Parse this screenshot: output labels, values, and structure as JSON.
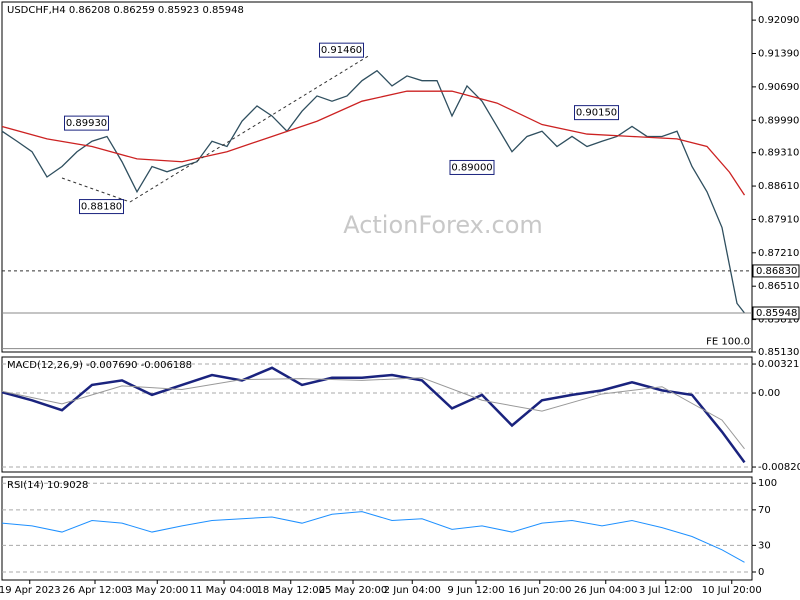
{
  "chart_data": [
    {
      "type": "line",
      "title": "USDCHF,H4 0.86208 0.86259 0.85923 0.85948",
      "watermark": "ActionForex.com",
      "xlim": [
        0,
        100
      ],
      "ylim": [
        0.8513,
        0.9247
      ],
      "yticks": [
        {
          "value": 0.9209,
          "label": "0.92090"
        },
        {
          "value": 0.9139,
          "label": "0.91390"
        },
        {
          "value": 0.9069,
          "label": "0.90690"
        },
        {
          "value": 0.8999,
          "label": "0.89990"
        },
        {
          "value": 0.8931,
          "label": "0.89310"
        },
        {
          "value": 0.8861,
          "label": "0.88610"
        },
        {
          "value": 0.8791,
          "label": "0.87910"
        },
        {
          "value": 0.8721,
          "label": "0.87210"
        },
        {
          "value": 0.8651,
          "label": "0.86510"
        },
        {
          "value": 0.8581,
          "label": "0.85810"
        },
        {
          "value": 0.8513,
          "label": "0.85130"
        }
      ],
      "series": [
        {
          "name": "USDCHF",
          "color": "#2f4f5f",
          "x": [
            0,
            2,
            4,
            6,
            8,
            10,
            12,
            14,
            16,
            18,
            20,
            22,
            24,
            26,
            28,
            30,
            32,
            34,
            36,
            38,
            40,
            42,
            44,
            46,
            48,
            50,
            52,
            54,
            56,
            58,
            60,
            62,
            64,
            66,
            68,
            70,
            72,
            74,
            76,
            78,
            80,
            82,
            84,
            86,
            88,
            90,
            92,
            94,
            96,
            98,
            99
          ],
          "values": [
            0.8976,
            0.8955,
            0.8933,
            0.888,
            0.8902,
            0.8933,
            0.8955,
            0.8965,
            0.8912,
            0.8849,
            0.8902,
            0.8891,
            0.8902,
            0.8912,
            0.8955,
            0.8944,
            0.8997,
            0.9029,
            0.9008,
            0.8976,
            0.9018,
            0.905,
            0.9039,
            0.905,
            0.9082,
            0.9103,
            0.9071,
            0.9092,
            0.9082,
            0.9082,
            0.9008,
            0.9071,
            0.9039,
            0.8986,
            0.8933,
            0.8965,
            0.8976,
            0.8944,
            0.8965,
            0.8944,
            0.8955,
            0.8965,
            0.8986,
            0.8965,
            0.8965,
            0.8976,
            0.8902,
            0.8849,
            0.8774,
            0.8615,
            0.85948
          ]
        },
        {
          "name": "MA",
          "color": "#cc2222",
          "x": [
            0,
            6,
            12,
            18,
            24,
            30,
            36,
            42,
            48,
            54,
            60,
            66,
            72,
            78,
            84,
            90,
            94,
            97,
            99
          ],
          "values": [
            0.8986,
            0.896,
            0.8944,
            0.8918,
            0.8912,
            0.8933,
            0.8965,
            0.8997,
            0.9039,
            0.906,
            0.906,
            0.9035,
            0.899,
            0.897,
            0.8965,
            0.896,
            0.8944,
            0.889,
            0.8842
          ]
        }
      ],
      "levels": [
        {
          "value": 0.8683,
          "label": "0.86830",
          "style": "dashed",
          "label_position": "axis"
        },
        {
          "value": 0.85948,
          "label": "0.85948",
          "style": "solid",
          "label_position": "axis"
        },
        {
          "value": 0.852,
          "label": "FE 100.0",
          "style": "solid",
          "label_position": "inside"
        }
      ],
      "annotations": [
        {
          "x": 49,
          "value": 0.9146,
          "label": "0.91460"
        },
        {
          "x": 15,
          "value": 0.8993,
          "label": "0.89930"
        },
        {
          "x": 17,
          "value": 0.8818,
          "label": "0.88180"
        },
        {
          "x": 66.4,
          "value": 0.89,
          "label": "0.89000"
        },
        {
          "x": 83,
          "value": 0.9015,
          "label": "0.90150"
        }
      ]
    },
    {
      "type": "line",
      "title": "MACD(12,26,9) -0.007690 -0.006188",
      "xlim": [
        0,
        100
      ],
      "ylim": [
        -0.00876,
        0.004
      ],
      "yticks": [
        0.003219,
        {
          "value": 0,
          "label": "0.00"
        },
        -0.008209
      ],
      "grid": true,
      "series": [
        {
          "name": "MACD",
          "color": "#1a237e",
          "width": 2.5,
          "x": [
            0,
            4,
            8,
            12,
            16,
            20,
            24,
            28,
            32,
            36,
            40,
            44,
            48,
            52,
            56,
            60,
            64,
            68,
            72,
            76,
            80,
            84,
            88,
            92,
            96,
            99
          ],
          "values": [
            0.0001,
            -0.0008,
            -0.0019,
            0.0009,
            0.0014,
            -0.0002,
            0.0009,
            0.002,
            0.0014,
            0.0028,
            0.0009,
            0.0017,
            0.0017,
            0.002,
            0.0014,
            -0.0017,
            -0.0002,
            -0.0036,
            -0.0008,
            -0.0002,
            0.0003,
            0.0012,
            0.0003,
            -0.0002,
            -0.0043,
            -0.00769
          ]
        },
        {
          "name": "Signal",
          "color": "#999999",
          "width": 1,
          "x": [
            0,
            8,
            16,
            24,
            32,
            40,
            48,
            56,
            64,
            72,
            80,
            88,
            96,
            99
          ],
          "values": [
            0.0002,
            -0.0012,
            0.0008,
            0.0004,
            0.0015,
            0.0016,
            0.0014,
            0.0017,
            -0.0008,
            -0.002,
            -0.0001,
            0.0007,
            -0.003,
            -0.006188
          ]
        }
      ]
    },
    {
      "type": "line",
      "title": "RSI(14) 10.9028",
      "xlim": [
        0,
        100
      ],
      "ylim": [
        -9,
        107
      ],
      "yticks": [
        0,
        30,
        70,
        100
      ],
      "grid": true,
      "xticks": [
        {
          "value": 3.7,
          "label": "19 Apr 2023"
        },
        {
          "value": 12.4,
          "label": "26 Apr 12:00"
        },
        {
          "value": 20.7,
          "label": "3 May 20:00"
        },
        {
          "value": 29.6,
          "label": "11 May 04:00"
        },
        {
          "value": 38.5,
          "label": "18 May 12:00"
        },
        {
          "value": 46.8,
          "label": "25 May 20:00"
        },
        {
          "value": 54.7,
          "label": "2 Jun 04:00"
        },
        {
          "value": 63.2,
          "label": "9 Jun 12:00"
        },
        {
          "value": 71.7,
          "label": "16 Jun 20:00"
        },
        {
          "value": 80.5,
          "label": "26 Jun 04:00"
        },
        {
          "value": 88.5,
          "label": "3 Jul 12:00"
        },
        {
          "value": 97.3,
          "label": "10 Jul 20:00"
        }
      ],
      "series": [
        {
          "name": "RSI",
          "color": "#1e90ff",
          "width": 1,
          "x": [
            0,
            4,
            8,
            12,
            16,
            20,
            24,
            28,
            32,
            36,
            40,
            44,
            48,
            52,
            56,
            60,
            64,
            68,
            72,
            76,
            80,
            84,
            88,
            92,
            96,
            99
          ],
          "values": [
            55,
            52,
            45,
            58,
            55,
            45,
            52,
            58,
            60,
            62,
            55,
            65,
            68,
            58,
            60,
            48,
            52,
            45,
            55,
            58,
            52,
            58,
            50,
            40,
            25,
            10.9028
          ]
        }
      ]
    }
  ]
}
